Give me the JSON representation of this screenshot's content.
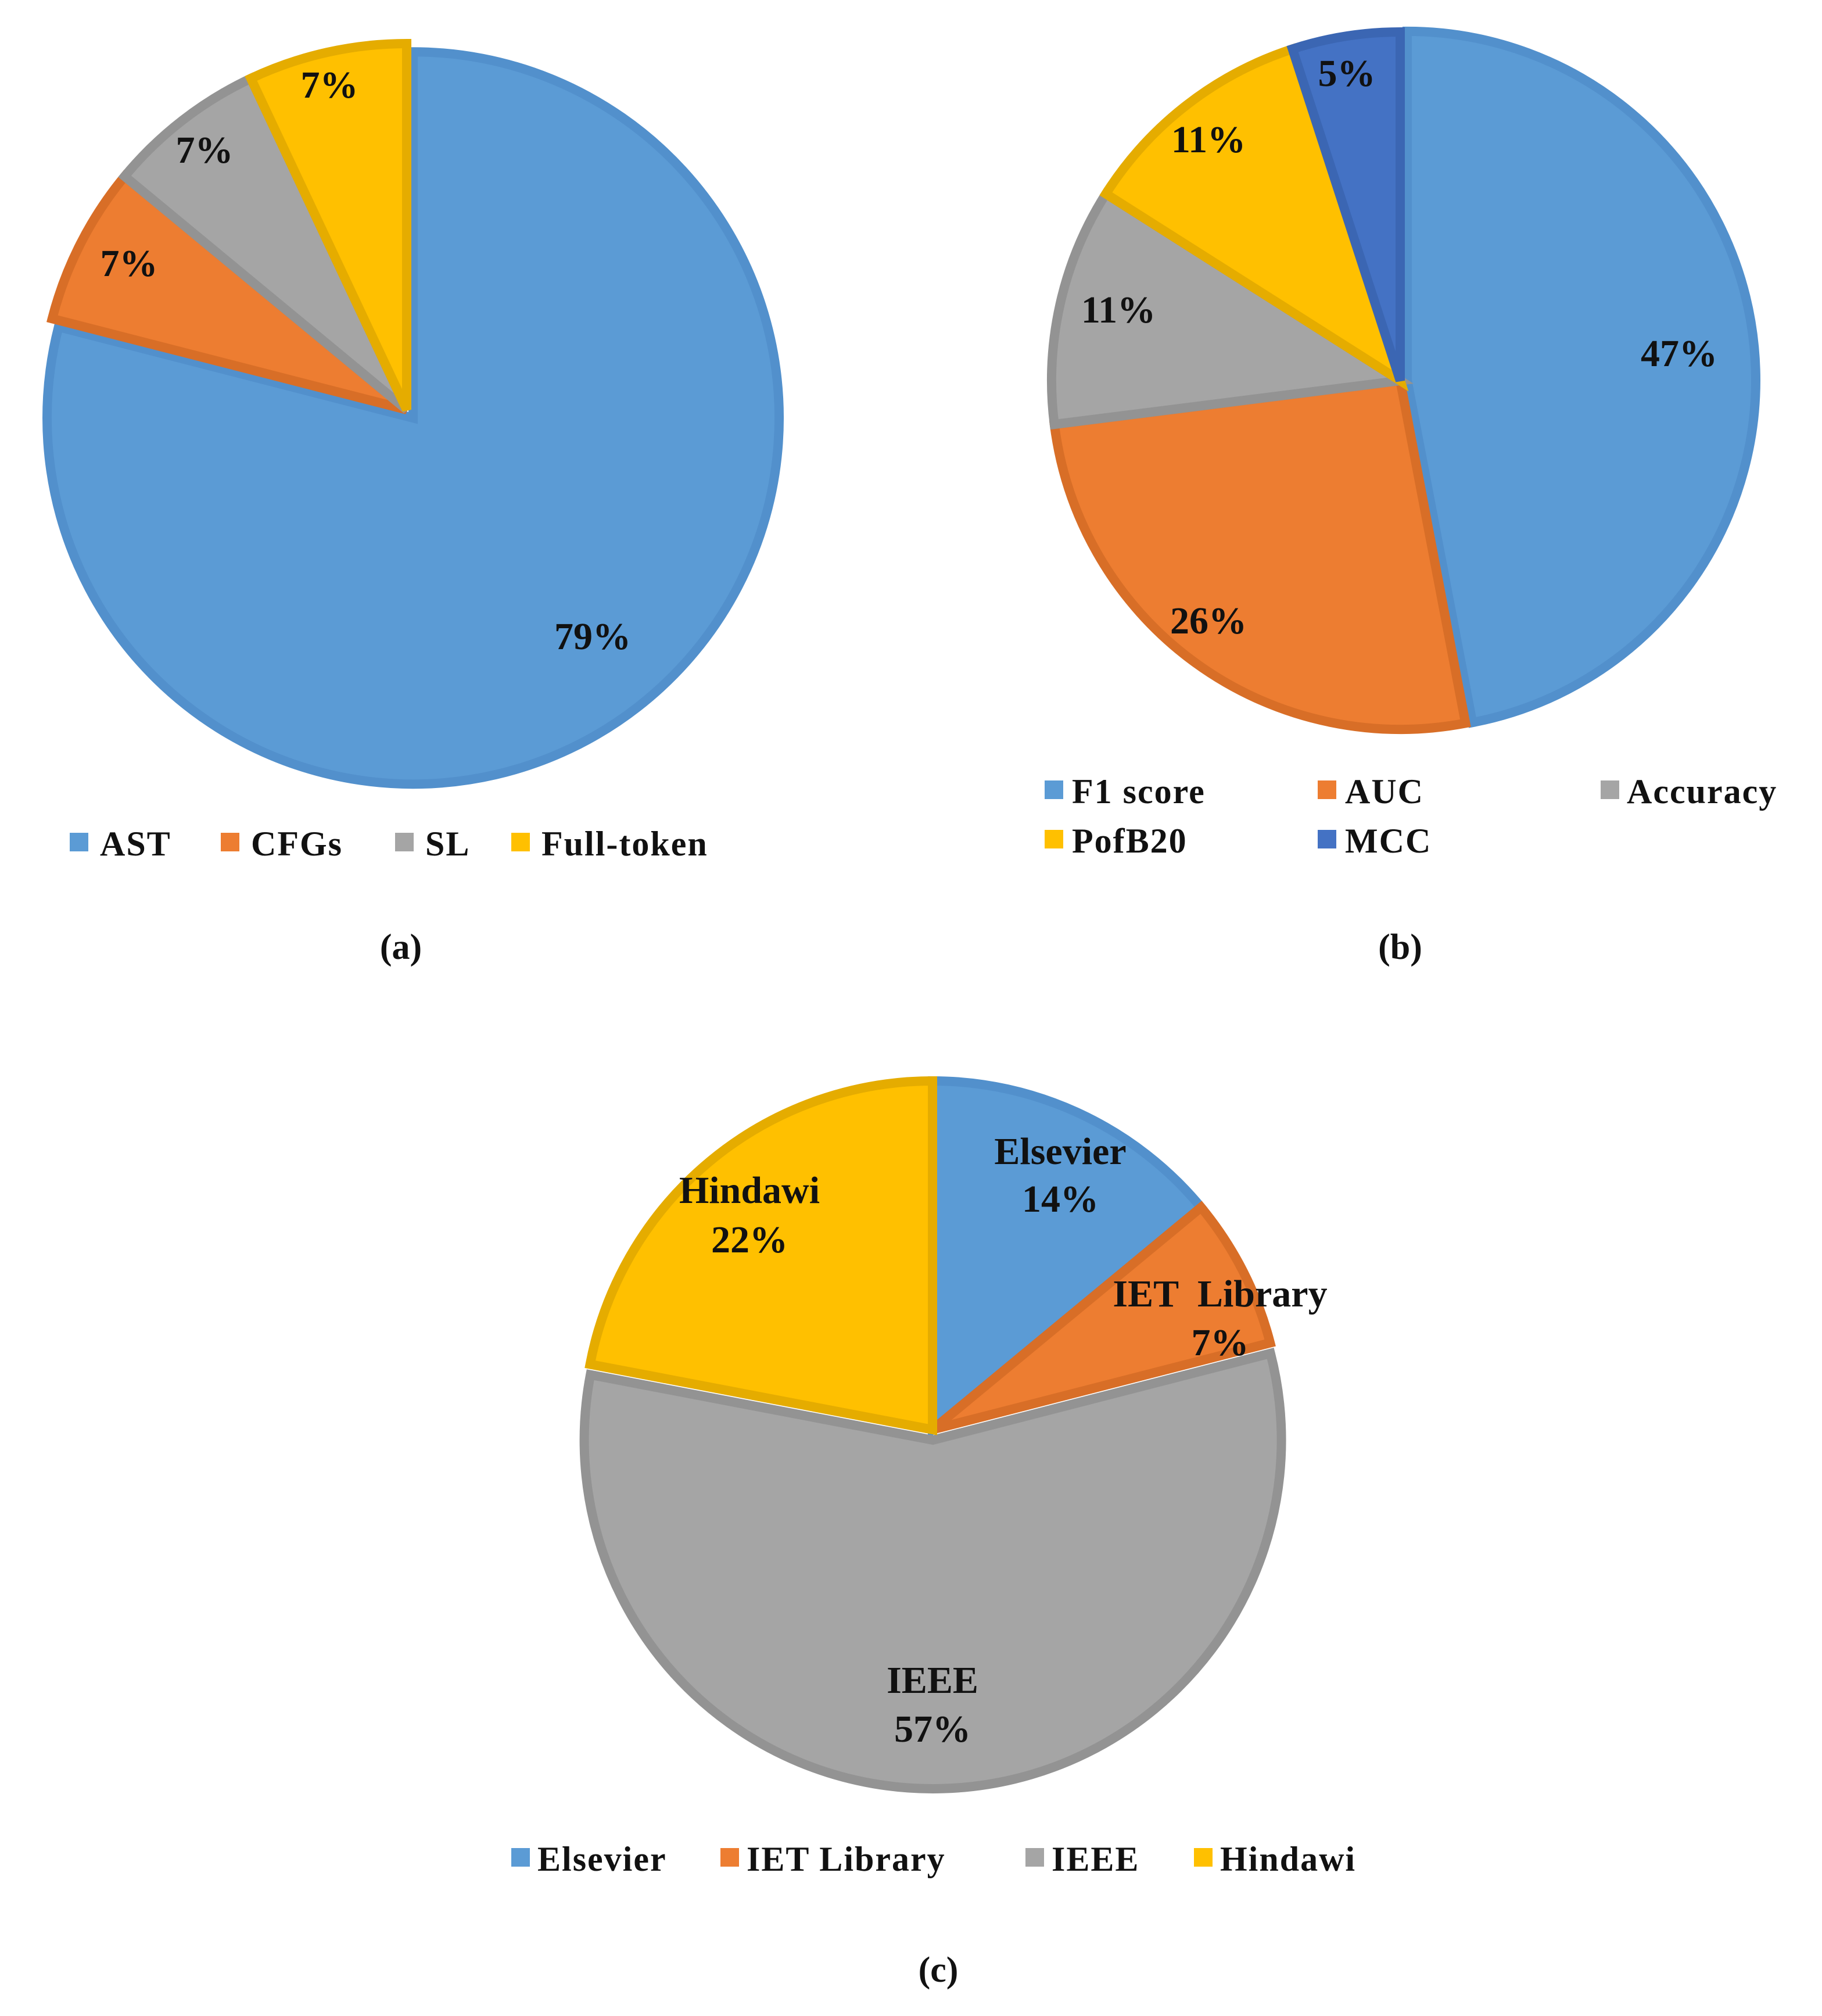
{
  "chart_data": [
    {
      "id": "a",
      "type": "pie",
      "caption": "(a)",
      "slices": [
        {
          "label": "AST",
          "value": 79,
          "text": "79%",
          "color": "#5B9BD5",
          "border": "#5290CC"
        },
        {
          "label": "CFGs",
          "value": 7,
          "text": "7%",
          "color": "#ED7D31",
          "border": "#D86E27"
        },
        {
          "label": "SL",
          "value": 7,
          "text": "7%",
          "color": "#A5A5A5",
          "border": "#939393"
        },
        {
          "label": "Full-token",
          "value": 7,
          "text": "7%",
          "color": "#FFC000",
          "border": "#E5AC00"
        }
      ],
      "legend": [
        "AST",
        "CFGs",
        "SL",
        "Full-token"
      ],
      "legend_placement": "bottom"
    },
    {
      "id": "b",
      "type": "pie",
      "caption": "(b)",
      "slices": [
        {
          "label": "F1 score",
          "value": 47,
          "text": "47%",
          "color": "#5B9BD5",
          "border": "#5290CC"
        },
        {
          "label": "AUC",
          "value": 26,
          "text": "26%",
          "color": "#ED7D31",
          "border": "#D86E27"
        },
        {
          "label": "Accuracy",
          "value": 11,
          "text": "11%",
          "color": "#A5A5A5",
          "border": "#939393"
        },
        {
          "label": "PofB20",
          "value": 11,
          "text": "11%",
          "color": "#FFC000",
          "border": "#E5AC00"
        },
        {
          "label": "MCC",
          "value": 5,
          "text": "5%",
          "color": "#4472C4",
          "border": "#3B66B3"
        }
      ],
      "legend": [
        "F1 score",
        "AUC",
        "Accuracy",
        "PofB20",
        "MCC"
      ],
      "legend_placement": "bottom"
    },
    {
      "id": "c",
      "type": "pie",
      "caption": "(c)",
      "slices": [
        {
          "label": "Elsevier",
          "value": 14,
          "text": "14%",
          "inside_name": "Elsevier",
          "color": "#5B9BD5",
          "border": "#5290CC"
        },
        {
          "label": "IET Library",
          "value": 7,
          "text": "7%",
          "inside_name": "IET  Library",
          "color": "#ED7D31",
          "border": "#D86E27"
        },
        {
          "label": "IEEE",
          "value": 57,
          "text": "57%",
          "inside_name": "IEEE",
          "color": "#A5A5A5",
          "border": "#939393"
        },
        {
          "label": "Hindawi",
          "value": 22,
          "text": "22%",
          "inside_name": "Hindawi",
          "color": "#FFC000",
          "border": "#E5AC00"
        }
      ],
      "legend": [
        "Elsevier",
        "IET Library",
        "IEEE",
        "Hindawi"
      ],
      "legend_placement": "bottom"
    }
  ]
}
